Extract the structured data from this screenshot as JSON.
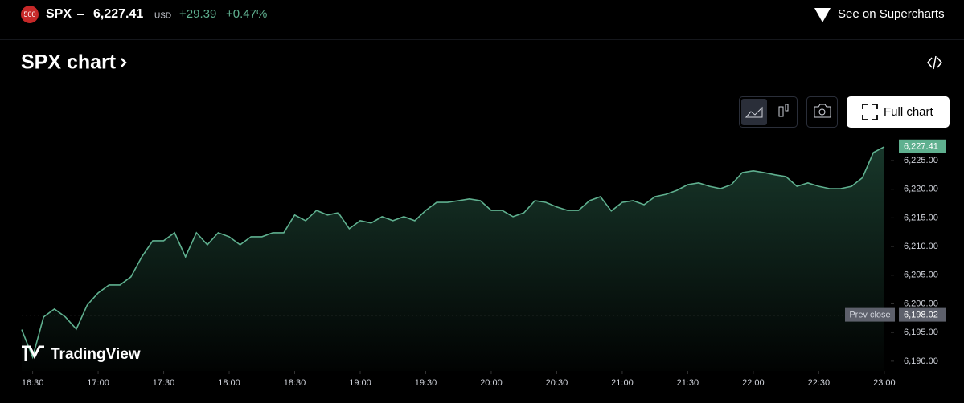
{
  "header": {
    "badge": "500",
    "symbol": "SPX",
    "price": "6,227.41",
    "currency": "USD",
    "change": "+29.39",
    "change_percent": "+0.47%",
    "link": "See on Supercharts"
  },
  "toolbar": {
    "title": "SPX chart",
    "full_chart": "Full chart"
  },
  "brand": "TradingView",
  "chart_data": {
    "type": "line",
    "x": [
      "16:25",
      "16:30",
      "16:35",
      "16:40",
      "16:45",
      "16:50",
      "16:55",
      "17:00",
      "17:05",
      "17:10",
      "17:15",
      "17:20",
      "17:25",
      "17:30",
      "17:35",
      "17:40",
      "17:45",
      "17:50",
      "17:55",
      "18:00",
      "18:05",
      "18:10",
      "18:15",
      "18:20",
      "18:25",
      "18:30",
      "18:35",
      "18:40",
      "18:45",
      "18:50",
      "18:55",
      "19:00",
      "19:05",
      "19:10",
      "19:15",
      "19:20",
      "19:25",
      "19:30",
      "19:35",
      "19:40",
      "19:45",
      "19:50",
      "19:55",
      "20:00",
      "20:05",
      "20:10",
      "20:15",
      "20:20",
      "20:25",
      "20:30",
      "20:35",
      "20:40",
      "20:45",
      "20:50",
      "20:55",
      "21:00",
      "21:05",
      "21:10",
      "21:15",
      "21:20",
      "21:25",
      "21:30",
      "21:35",
      "21:40",
      "21:45",
      "21:50",
      "21:55",
      "22:00",
      "22:05",
      "22:10",
      "22:15",
      "22:20",
      "22:25",
      "22:30",
      "22:35",
      "22:40",
      "22:45",
      "22:50",
      "22:55",
      "23:00"
    ],
    "series": [
      {
        "name": "SPX",
        "color": "#5fb08f",
        "values": [
          6195.5,
          6190.7,
          6197.7,
          6199.1,
          6197.7,
          6195.6,
          6199.8,
          6201.9,
          6203.3,
          6203.3,
          6204.7,
          6208.2,
          6211.0,
          6211.0,
          6212.4,
          6208.2,
          6212.4,
          6210.3,
          6212.4,
          6211.7,
          6210.3,
          6211.7,
          6211.7,
          6212.4,
          6212.4,
          6215.5,
          6214.5,
          6216.3,
          6215.5,
          6215.9,
          6213.1,
          6214.5,
          6214.1,
          6215.2,
          6214.5,
          6215.2,
          6214.5,
          6216.3,
          6217.7,
          6217.7,
          6218.0,
          6218.3,
          6218.0,
          6216.3,
          6216.3,
          6215.2,
          6215.9,
          6218.0,
          6217.7,
          6216.9,
          6216.3,
          6216.3,
          6218.0,
          6218.7,
          6216.2,
          6217.7,
          6218.0,
          6217.3,
          6218.7,
          6219.1,
          6219.8,
          6220.8,
          6221.1,
          6220.5,
          6220.1,
          6220.8,
          6222.9,
          6223.2,
          6222.9,
          6222.5,
          6222.2,
          6220.5,
          6221.1,
          6220.5,
          6220.1,
          6220.1,
          6220.5,
          6222.0,
          6226.4,
          6227.41
        ]
      }
    ],
    "xlim": [
      "16:25",
      "23:03"
    ],
    "xticks": [
      "16:30",
      "17:00",
      "17:30",
      "18:00",
      "18:30",
      "19:00",
      "19:30",
      "20:00",
      "20:30",
      "21:00",
      "21:30",
      "22:00",
      "22:30",
      "23:00"
    ],
    "ylim": [
      6188.3,
      6229.9
    ],
    "yticks": [
      {
        "value": 6190,
        "label": "6,190.00"
      },
      {
        "value": 6195,
        "label": "6,195.00"
      },
      {
        "value": 6200,
        "label": "6,200.00"
      },
      {
        "value": 6205,
        "label": "6,205.00"
      },
      {
        "value": 6210,
        "label": "6,210.00"
      },
      {
        "value": 6215,
        "label": "6,215.00"
      },
      {
        "value": 6220,
        "label": "6,220.00"
      },
      {
        "value": 6225,
        "label": "6,225.00"
      }
    ],
    "last_price": {
      "value": 6227.41,
      "label": "6,227.41"
    },
    "prev_close_title": "Prev close",
    "prev_close": {
      "value": 6198.02,
      "label": "6,198.02"
    }
  }
}
